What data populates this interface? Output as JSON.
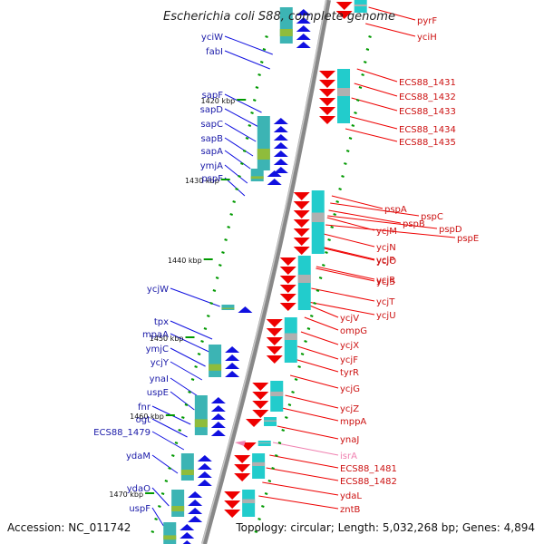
{
  "title": "Escherichia coli S88, complete genome",
  "footer": {
    "accession": "Accession: NC_011742",
    "topology": "Topology: circular; Length: 5,032,268 bp; Genes: 4,894"
  },
  "kbp_marks": [
    {
      "label": "1420 kbp"
    },
    {
      "label": "1430 kbp"
    },
    {
      "label": "1440 kbp"
    },
    {
      "label": "1450 kbp"
    },
    {
      "label": "1460 kbp"
    },
    {
      "label": "1470 kbp"
    }
  ],
  "left_genes": [
    "yciW",
    "fabI",
    "sapF",
    "sapD",
    "sapC",
    "sapB",
    "sapA",
    "ymjA",
    "pspF",
    "ycjW",
    "tpx",
    "mpaA",
    "ymjC",
    "ycjY",
    "ynaI",
    "uspE",
    "fnr",
    "ogt",
    "ECS88_1479",
    "ydaM",
    "ydaO",
    "uspF"
  ],
  "right_genes": [
    "pyrF",
    "yciH",
    "ECS88_1431",
    "ECS88_1432",
    "ECS88_1433",
    "ECS88_1434",
    "ECS88_1435",
    "pspA",
    "pspB",
    "pspC",
    "pspD",
    "pspE",
    "ycjM",
    "ycjN",
    "ycjO",
    "ycjP",
    "ycjR",
    "ycjS",
    "ycjT",
    "ycjU",
    "ycjV",
    "ompG",
    "ycjX",
    "ycjF",
    "tyrR",
    "ycjG",
    "ycjZ",
    "mppA",
    "ynaJ",
    "isrA",
    "ECS88_1481",
    "ECS88_1482",
    "ydaL",
    "zntB"
  ],
  "colors": {
    "forward": "#1010e0",
    "reverse": "#ee0000",
    "rna": "#f080b0",
    "backbone": "#888888",
    "tick": "#009900"
  }
}
